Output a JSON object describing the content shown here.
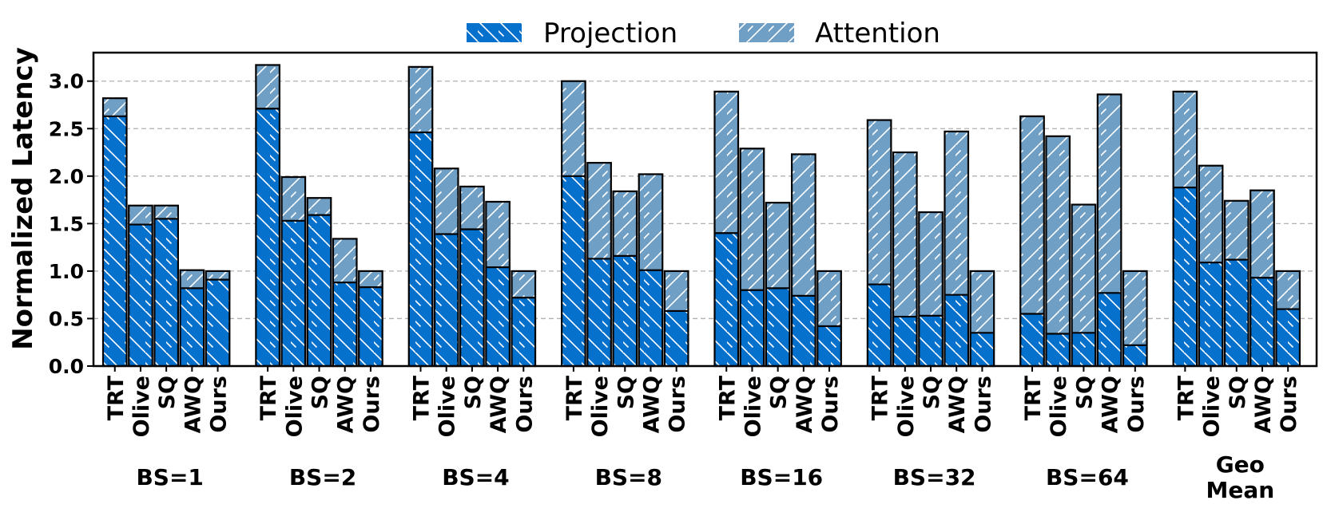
{
  "chart_data": {
    "type": "bar",
    "stacked": true,
    "title": "",
    "xlabel": "",
    "ylabel": "Normalized Latency",
    "ylim": [
      0,
      3.3
    ],
    "yticks": [
      "0.0",
      "0.5",
      "1.0",
      "1.5",
      "2.0",
      "2.5",
      "3.0"
    ],
    "grid": "y-dashed",
    "legend_position": "top-center",
    "methods": [
      "TRT",
      "Olive",
      "SQ",
      "AWQ",
      "Ours"
    ],
    "groups": [
      {
        "label": "BS=1",
        "label_lines": [
          "BS=1"
        ],
        "projection": [
          2.63,
          1.49,
          1.55,
          0.82,
          0.91
        ],
        "total": [
          2.82,
          1.69,
          1.69,
          1.01,
          1.0
        ]
      },
      {
        "label": "BS=2",
        "label_lines": [
          "BS=2"
        ],
        "projection": [
          2.71,
          1.53,
          1.59,
          0.88,
          0.83
        ],
        "total": [
          3.17,
          1.99,
          1.77,
          1.34,
          1.0
        ]
      },
      {
        "label": "BS=4",
        "label_lines": [
          "BS=4"
        ],
        "projection": [
          2.46,
          1.39,
          1.44,
          1.04,
          0.72
        ],
        "total": [
          3.15,
          2.08,
          1.89,
          1.73,
          1.0
        ]
      },
      {
        "label": "BS=8",
        "label_lines": [
          "BS=8"
        ],
        "projection": [
          2.0,
          1.13,
          1.16,
          1.01,
          0.58
        ],
        "total": [
          3.0,
          2.14,
          1.84,
          2.02,
          1.0
        ]
      },
      {
        "label": "BS=16",
        "label_lines": [
          "BS=16"
        ],
        "projection": [
          1.4,
          0.8,
          0.82,
          0.74,
          0.42
        ],
        "total": [
          2.89,
          2.29,
          1.72,
          2.23,
          1.0
        ]
      },
      {
        "label": "BS=32",
        "label_lines": [
          "BS=32"
        ],
        "projection": [
          0.86,
          0.52,
          0.53,
          0.75,
          0.35
        ],
        "total": [
          2.59,
          2.25,
          1.62,
          2.47,
          1.0
        ]
      },
      {
        "label": "BS=64",
        "label_lines": [
          "BS=64"
        ],
        "projection": [
          0.55,
          0.34,
          0.35,
          0.77,
          0.22
        ],
        "total": [
          2.63,
          2.42,
          1.7,
          2.86,
          1.0
        ]
      },
      {
        "label": "Geo Mean",
        "label_lines": [
          "Geo",
          "Mean"
        ],
        "projection": [
          1.88,
          1.09,
          1.12,
          0.93,
          0.6
        ],
        "total": [
          2.89,
          2.11,
          1.74,
          1.85,
          1.0
        ]
      }
    ],
    "series": [
      {
        "name": "Projection",
        "color": "#0571cd",
        "hatch": "backslash"
      },
      {
        "name": "Attention",
        "color": "#709fc6",
        "hatch": "slash"
      }
    ]
  }
}
